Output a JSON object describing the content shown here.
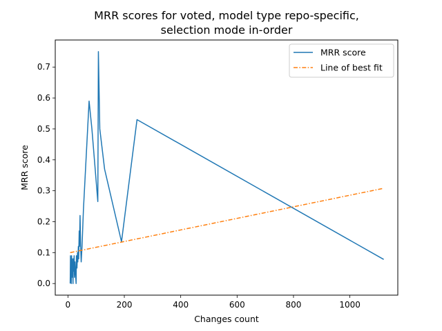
{
  "chart_data": {
    "type": "line",
    "title": "MRR scores for voted, model type repo-specific,\nselection mode in-order",
    "xlabel": "Changes count",
    "ylabel": "MRR score",
    "xlim": [
      -45,
      1170
    ],
    "ylim": [
      -0.0375,
      0.7875
    ],
    "xticks": [
      0,
      200,
      400,
      600,
      800,
      1000
    ],
    "yticks": [
      0.0,
      0.1,
      0.2,
      0.3,
      0.4,
      0.5,
      0.6,
      0.7
    ],
    "grid": false,
    "legend_position": "top-right",
    "series": [
      {
        "name": "MRR score",
        "color": "#1f77b4",
        "style": "solid",
        "points": [
          [
            8,
            0.0
          ],
          [
            9,
            0.09
          ],
          [
            10,
            0.02
          ],
          [
            11,
            0.07
          ],
          [
            12,
            0.0
          ],
          [
            13,
            0.09
          ],
          [
            14,
            0.03
          ],
          [
            15,
            0.08
          ],
          [
            16,
            0.02
          ],
          [
            17,
            0.06
          ],
          [
            18,
            0.0
          ],
          [
            19,
            0.08
          ],
          [
            20,
            0.04
          ],
          [
            22,
            0.09
          ],
          [
            23,
            0.02
          ],
          [
            25,
            0.07
          ],
          [
            27,
            0.03
          ],
          [
            29,
            0.0
          ],
          [
            30,
            0.09
          ],
          [
            32,
            0.05
          ],
          [
            34,
            0.1
          ],
          [
            35,
            0.07
          ],
          [
            37,
            0.12
          ],
          [
            38,
            0.08
          ],
          [
            40,
            0.17
          ],
          [
            41,
            0.12
          ],
          [
            43,
            0.22
          ],
          [
            45,
            0.12
          ],
          [
            47,
            0.07
          ],
          [
            50,
            0.12
          ],
          [
            55,
            0.24
          ],
          [
            75,
            0.59
          ],
          [
            85,
            0.5
          ],
          [
            106,
            0.265
          ],
          [
            108,
            0.75
          ],
          [
            113,
            0.5
          ],
          [
            130,
            0.37
          ],
          [
            190,
            0.135
          ],
          [
            245,
            0.53
          ],
          [
            1120,
            0.078
          ]
        ]
      },
      {
        "name": "Line of best fit",
        "color": "#ff7f0e",
        "style": "dashdot",
        "points": [
          [
            8,
            0.1
          ],
          [
            1120,
            0.308
          ]
        ]
      }
    ]
  }
}
